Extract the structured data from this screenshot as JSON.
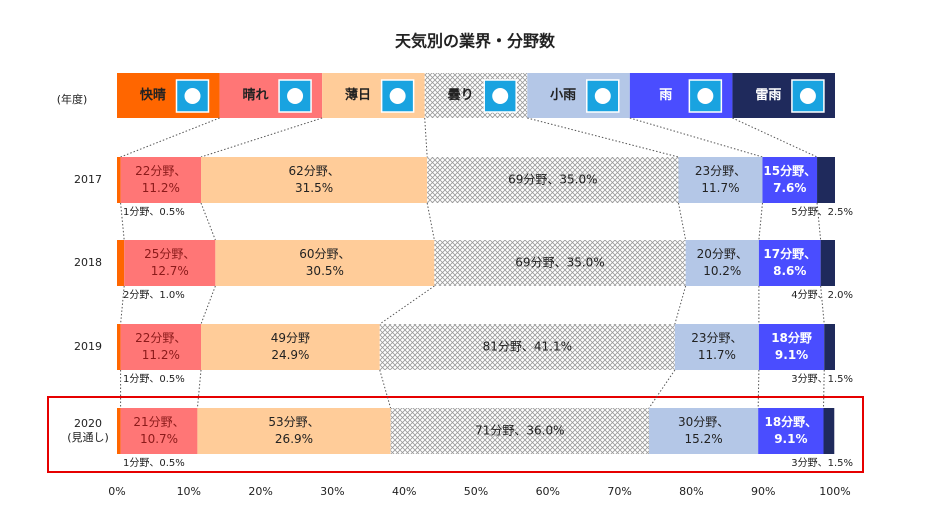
{
  "chart_data": {
    "type": "stacked-bar-100",
    "title": "天気別の業界・分野数",
    "category_axis_label": "(年度)",
    "categories": [
      "2017",
      "2018",
      "2019",
      "2020(見通し)"
    ],
    "series": [
      {
        "name": "快晴",
        "color": "#ff6600",
        "values": [
          0.5,
          1.0,
          0.5,
          0.5
        ],
        "value_labels": [
          [
            "1分野、0.5%"
          ],
          [
            "2分野、1.0%"
          ],
          [
            "1分野、0.5%"
          ],
          [
            "1分野、0.5%"
          ]
        ]
      },
      {
        "name": "晴れ",
        "color": "#ff7676",
        "values": [
          11.2,
          12.7,
          11.2,
          10.7
        ],
        "value_labels": [
          [
            "22分野、",
            "11.2%"
          ],
          [
            "25分野、",
            "12.7%"
          ],
          [
            "22分野、",
            "11.2%"
          ],
          [
            "21分野、",
            "10.7%"
          ]
        ]
      },
      {
        "name": "薄日",
        "color": "#ffcc99",
        "values": [
          31.5,
          30.5,
          24.9,
          26.9
        ],
        "value_labels": [
          [
            "62分野、",
            "31.5%"
          ],
          [
            "60分野、",
            "30.5%"
          ],
          [
            "49分野",
            "24.9%"
          ],
          [
            "53分野、",
            "26.9%"
          ]
        ]
      },
      {
        "name": "曇り",
        "color": "#d0d0d0",
        "hatch": true,
        "values": [
          35.0,
          35.0,
          41.1,
          36.0
        ],
        "value_labels": [
          [
            "69分野、35.0%"
          ],
          [
            "69分野、35.0%"
          ],
          [
            "81分野、41.1%"
          ],
          [
            "71分野、36.0%"
          ]
        ]
      },
      {
        "name": "小雨",
        "color": "#b4c7e7",
        "values": [
          11.7,
          10.2,
          11.7,
          15.2
        ],
        "value_labels": [
          [
            "23分野、",
            "11.7%"
          ],
          [
            "20分野、",
            "10.2%"
          ],
          [
            "23分野、",
            "11.7%"
          ],
          [
            "30分野、",
            "15.2%"
          ]
        ]
      },
      {
        "name": "雨",
        "color": "#4a4dff",
        "values": [
          7.6,
          8.6,
          9.1,
          9.1
        ],
        "value_labels": [
          [
            "15分野、",
            "7.6%"
          ],
          [
            "17分野、",
            "8.6%"
          ],
          [
            "18分野",
            "9.1%"
          ],
          [
            "18分野、",
            "9.1%"
          ]
        ]
      },
      {
        "name": "雷雨",
        "color": "#1f2a5c",
        "values": [
          2.5,
          2.0,
          1.5,
          1.5
        ],
        "value_labels": [
          [
            "5分野、2.5%"
          ],
          [
            "4分野、2.0%"
          ],
          [
            "3分野、1.5%"
          ],
          [
            "3分野、1.5%"
          ]
        ]
      }
    ],
    "xlim": [
      0,
      100
    ],
    "xticks": [
      {
        "value": 0,
        "label": "0%"
      },
      {
        "value": 10,
        "label": "10%"
      },
      {
        "value": 20,
        "label": "20%"
      },
      {
        "value": 30,
        "label": "30%"
      },
      {
        "value": 40,
        "label": "40%"
      },
      {
        "value": 50,
        "label": "50%"
      },
      {
        "value": 60,
        "label": "60%"
      },
      {
        "value": 70,
        "label": "70%"
      },
      {
        "value": 80,
        "label": "80%"
      },
      {
        "value": 90,
        "label": "90%"
      },
      {
        "value": 100,
        "label": "100%"
      }
    ]
  }
}
